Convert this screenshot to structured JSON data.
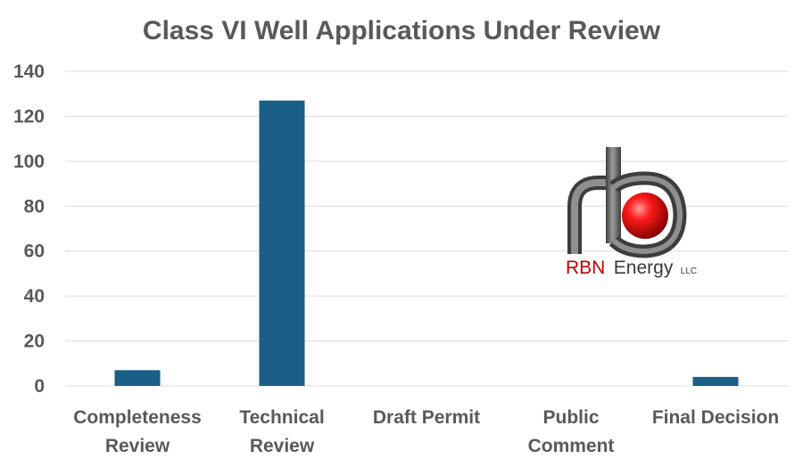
{
  "chart_data": {
    "type": "bar",
    "title": "Class VI Well Applications Under Review",
    "xlabel": "",
    "ylabel": "",
    "categories": [
      [
        "Completeness",
        "Review"
      ],
      [
        "Technical",
        "Review"
      ],
      [
        "Draft Permit"
      ],
      [
        "Public",
        "Comment"
      ],
      [
        "Final Decision"
      ]
    ],
    "values": [
      7,
      127,
      0,
      0,
      4
    ],
    "ylim": [
      0,
      140
    ],
    "yticks": [
      0,
      20,
      40,
      60,
      80,
      100,
      120,
      140
    ],
    "grid": true,
    "legend": "none",
    "colors": {
      "bar": "#1a5f85",
      "text": "#595959",
      "grid": "#d9d9d9"
    }
  },
  "logo": {
    "icon": "rbn-pipe-logo-icon",
    "brand_red": "RBN",
    "brand_dark": "Energy",
    "suffix": "LLC",
    "colors": {
      "red": "#c00000",
      "pipe": "#6b6b6b"
    }
  }
}
